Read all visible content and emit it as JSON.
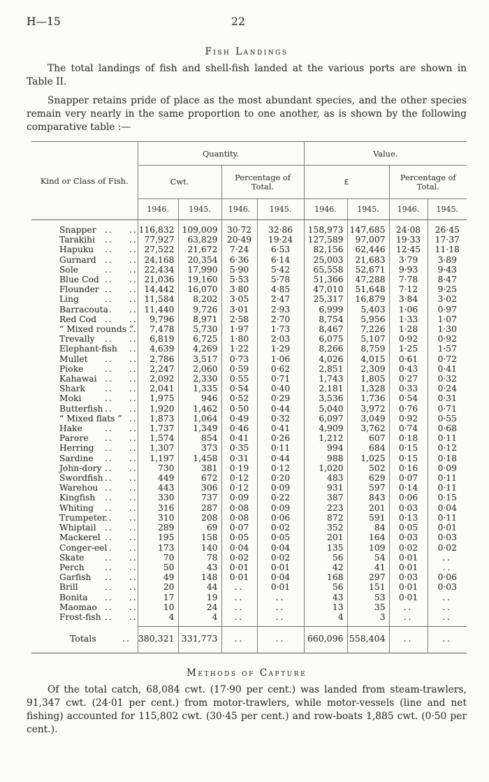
{
  "page": {
    "doc_code": "H—15",
    "page_number": "22"
  },
  "sections": {
    "fish_landings": {
      "title": "Fish Landings",
      "para1": "The total landings of fish and shell-fish landed at the various ports are shown in Table II.",
      "para2": "Snapper retains pride of place as the most abundant species, and the other species remain very nearly in the same proportion to one another, as is shown by the following comparative table :—"
    },
    "methods_of_capture": {
      "title": "Methods of Capture",
      "para": "Of the total catch, 68,084 cwt. (17·90 per cent.) was landed from steam-trawlers, 91,347 cwt. (24·01 per cent.) from motor-trawlers, while motor-vessels (line and net fishing) accounted for 115,802 cwt. (30·45 per cent.) and row-boats 1,885 cwt. (0·50 per cent.)."
    }
  },
  "table": {
    "col1_header": "Kind or Class of Fish.",
    "group_headers": [
      "Quantity.",
      "Value."
    ],
    "sub_headers": [
      "Cwt.",
      "Percentage of Total.",
      "£",
      "Percentage of Total."
    ],
    "year_headers": [
      "1946.",
      "1945.",
      "1946.",
      "1945.",
      "1946.",
      "1945.",
      "1946.",
      "1945."
    ],
    "leader_glyph": "..",
    "rows": [
      {
        "name": "Snapper",
        "leaders": 2,
        "values": [
          "116,832",
          "109,009",
          "30·72",
          "32·86",
          "158,973",
          "147,685",
          "24·08",
          "26·45"
        ]
      },
      {
        "name": "Tarakihi",
        "leaders": 2,
        "values": [
          "77,927",
          "63,829",
          "20·49",
          "19·24",
          "127,589",
          "97,007",
          "19·33",
          "17·37"
        ]
      },
      {
        "name": "Hapuku",
        "leaders": 2,
        "values": [
          "27,522",
          "21,672",
          "7·24",
          "6·53",
          "82,156",
          "62,446",
          "12·45",
          "11·18"
        ]
      },
      {
        "name": "Gurnard",
        "leaders": 2,
        "values": [
          "24,168",
          "20,354",
          "6·36",
          "6·14",
          "25,003",
          "21,683",
          "3·79",
          "3·89"
        ]
      },
      {
        "name": "Sole",
        "leaders": 2,
        "values": [
          "22,434",
          "17,990",
          "5·90",
          "5·42",
          "65,558",
          "52,671",
          "9·93",
          "9·43"
        ]
      },
      {
        "name": "Blue Cod",
        "leaders": 2,
        "values": [
          "21,036",
          "19,160",
          "5·53",
          "5·78",
          "51,366",
          "47,288",
          "7·78",
          "8·47"
        ]
      },
      {
        "name": "Flounder",
        "leaders": 2,
        "values": [
          "14,442",
          "16,070",
          "3·80",
          "4·85",
          "47,010",
          "51,648",
          "7·12",
          "9·25"
        ]
      },
      {
        "name": "Ling",
        "leaders": 2,
        "values": [
          "11,584",
          "8,202",
          "3·05",
          "2·47",
          "25,317",
          "16,879",
          "3·84",
          "3·02"
        ]
      },
      {
        "name": "Barracouta",
        "leaders": 2,
        "values": [
          "11,440",
          "9,726",
          "3·01",
          "2·93",
          "6,999",
          "5,403",
          "1·06",
          "0·97"
        ]
      },
      {
        "name": "Red Cod",
        "leaders": 2,
        "values": [
          "9,796",
          "8,971",
          "2·58",
          "2·70",
          "8,754",
          "5,956",
          "1·33",
          "1·07"
        ]
      },
      {
        "name": "“ Mixed rounds ”",
        "leaders": 1,
        "values": [
          "7,478",
          "5,730",
          "1·97",
          "1·73",
          "8,467",
          "7,226",
          "1·28",
          "1·30"
        ]
      },
      {
        "name": "Trevally",
        "leaders": 2,
        "values": [
          "6,819",
          "6,725",
          "1·80",
          "2·03",
          "6,075",
          "5,107",
          "0·92",
          "0·92"
        ]
      },
      {
        "name": "Elephant-fish",
        "leaders": 1,
        "values": [
          "4,639",
          "4,269",
          "1·22",
          "1·29",
          "8,266",
          "8,759",
          "1·25",
          "1·57"
        ]
      },
      {
        "name": "Mullet",
        "leaders": 2,
        "values": [
          "2,786",
          "3,517",
          "0·73",
          "1·06",
          "4,026",
          "4,015",
          "0·61",
          "0·72"
        ]
      },
      {
        "name": "Pioke",
        "leaders": 2,
        "values": [
          "2,247",
          "2,060",
          "0·59",
          "0·62",
          "2,851",
          "2,309",
          "0·43",
          "0·41"
        ]
      },
      {
        "name": "Kahawai",
        "leaders": 2,
        "values": [
          "2,092",
          "2,330",
          "0·55",
          "0·71",
          "1,743",
          "1,805",
          "0·27",
          "0·32"
        ]
      },
      {
        "name": "Shark",
        "leaders": 2,
        "values": [
          "2,041",
          "1,335",
          "0·54",
          "0·40",
          "2,181",
          "1,328",
          "0·33",
          "0·24"
        ]
      },
      {
        "name": "Moki",
        "leaders": 2,
        "values": [
          "1,975",
          "946",
          "0·52",
          "0·29",
          "3,536",
          "1,736",
          "0·54",
          "0·31"
        ]
      },
      {
        "name": "Butterfish",
        "leaders": 2,
        "values": [
          "1,920",
          "1,462",
          "0·50",
          "0·44",
          "5,040",
          "3,972",
          "0·76",
          "0·71"
        ]
      },
      {
        "name": "“ Mixed flats ”",
        "leaders": 1,
        "values": [
          "1,873",
          "1,064",
          "0·49",
          "0·32",
          "6,097",
          "3,049",
          "0·92",
          "0·55"
        ]
      },
      {
        "name": "Hake",
        "leaders": 2,
        "values": [
          "1,737",
          "1,349",
          "0·46",
          "0·41",
          "4,909",
          "3,762",
          "0·74",
          "0·68"
        ]
      },
      {
        "name": "Parore",
        "leaders": 2,
        "values": [
          "1,574",
          "854",
          "0·41",
          "0·26",
          "1,212",
          "607",
          "0·18",
          "0·11"
        ]
      },
      {
        "name": "Herring",
        "leaders": 2,
        "values": [
          "1,307",
          "373",
          "0·35",
          "0·11",
          "994",
          "684",
          "0·15",
          "0·12"
        ]
      },
      {
        "name": "Sardine",
        "leaders": 2,
        "values": [
          "1,197",
          "1,458",
          "0·31",
          "0·44",
          "988",
          "1,025",
          "0·15",
          "0·18"
        ]
      },
      {
        "name": "John-dory",
        "leaders": 2,
        "values": [
          "730",
          "381",
          "0·19",
          "0·12",
          "1,020",
          "502",
          "0·16",
          "0·09"
        ]
      },
      {
        "name": "Swordfish",
        "leaders": 2,
        "values": [
          "449",
          "672",
          "0·12",
          "0·20",
          "483",
          "629",
          "0·07",
          "0·11"
        ]
      },
      {
        "name": "Warehou",
        "leaders": 2,
        "values": [
          "443",
          "306",
          "0·12",
          "0·09",
          "931",
          "597",
          "0·14",
          "0·11"
        ]
      },
      {
        "name": "Kingfish",
        "leaders": 2,
        "values": [
          "330",
          "737",
          "0·09",
          "0·22",
          "387",
          "843",
          "0·06",
          "0·15"
        ]
      },
      {
        "name": "Whiting",
        "leaders": 2,
        "values": [
          "316",
          "287",
          "0·08",
          "0·09",
          "223",
          "201",
          "0·03",
          "0·04"
        ]
      },
      {
        "name": "Trumpeter",
        "leaders": 2,
        "values": [
          "310",
          "208",
          "0·08",
          "0·06",
          "872",
          "591",
          "0·13",
          "0·11"
        ]
      },
      {
        "name": "Whiptail",
        "leaders": 2,
        "values": [
          "289",
          "69",
          "0·07",
          "0·02",
          "352",
          "84",
          "0·05",
          "0·01"
        ]
      },
      {
        "name": "Mackerel",
        "leaders": 2,
        "values": [
          "195",
          "158",
          "0·05",
          "0·05",
          "201",
          "164",
          "0·03",
          "0·03"
        ]
      },
      {
        "name": "Conger-eel",
        "leaders": 2,
        "values": [
          "173",
          "140",
          "0·04",
          "0·04",
          "135",
          "109",
          "0·02",
          "0·02"
        ]
      },
      {
        "name": "Skate",
        "leaders": 2,
        "values": [
          "70",
          "78",
          "0·02",
          "0·02",
          "56",
          "54",
          "0·01",
          ".."
        ]
      },
      {
        "name": "Perch",
        "leaders": 2,
        "values": [
          "50",
          "43",
          "0·01",
          "0·01",
          "42",
          "41",
          "0·01",
          ".."
        ]
      },
      {
        "name": "Garfish",
        "leaders": 2,
        "values": [
          "49",
          "148",
          "0·01",
          "0·04",
          "168",
          "297",
          "0·03",
          "0·06"
        ]
      },
      {
        "name": "Brill",
        "leaders": 2,
        "values": [
          "20",
          "44",
          "..",
          "0·01",
          "56",
          "151",
          "0·01",
          "0·03"
        ]
      },
      {
        "name": "Bonita",
        "leaders": 2,
        "values": [
          "17",
          "19",
          "..",
          "..",
          "43",
          "53",
          "0·01",
          ".."
        ]
      },
      {
        "name": "Maomao",
        "leaders": 2,
        "values": [
          "10",
          "24",
          "..",
          "..",
          "13",
          "35",
          "..",
          ".."
        ]
      },
      {
        "name": "Frost-fish",
        "leaders": 2,
        "values": [
          "4",
          "4",
          "..",
          "..",
          "4",
          "3",
          "..",
          ".."
        ]
      }
    ],
    "totals": {
      "label": "Totals",
      "values": [
        "380,321",
        "331,773",
        "..",
        "..",
        "660,096",
        "558,404",
        "..",
        ".."
      ]
    }
  }
}
